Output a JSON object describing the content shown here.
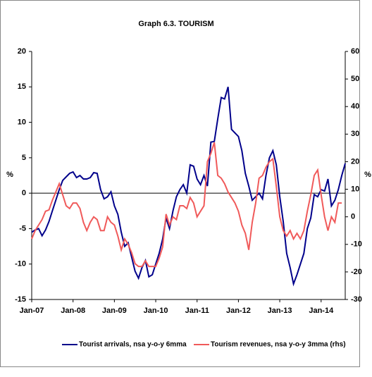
{
  "chart_data": {
    "type": "line",
    "title": "Graph 6.3. TOURISM",
    "ylabel": "%",
    "y2label": "%",
    "categories": [
      "Jan-07",
      null,
      null,
      null,
      null,
      null,
      null,
      null,
      null,
      null,
      null,
      null,
      "Jan-08",
      null,
      null,
      null,
      null,
      null,
      null,
      null,
      null,
      null,
      null,
      null,
      "Jan-09",
      null,
      null,
      null,
      null,
      null,
      null,
      null,
      null,
      null,
      null,
      null,
      "Jan-10",
      null,
      null,
      null,
      null,
      null,
      null,
      null,
      null,
      null,
      null,
      null,
      "Jan-11",
      null,
      null,
      null,
      null,
      null,
      null,
      null,
      null,
      null,
      null,
      null,
      "Jan-12",
      null,
      null,
      null,
      null,
      null,
      null,
      null,
      null,
      null,
      null,
      null,
      "Jan-13",
      null,
      null,
      null,
      null,
      null,
      null,
      null,
      null,
      null,
      null,
      null,
      "Jan-14",
      null,
      null,
      null,
      null,
      null,
      null,
      null
    ],
    "ylim": [
      -15,
      20
    ],
    "yticks": [
      -15,
      -10,
      -5,
      0,
      5,
      10,
      15,
      20
    ],
    "y2lim": [
      -30,
      60
    ],
    "y2ticks": [
      -30,
      -20,
      -10,
      0,
      10,
      20,
      30,
      40,
      50,
      60
    ],
    "series": [
      {
        "name": "Tourist arrivals, nsa y-o-y 6mma",
        "color": "#00008b",
        "values": [
          -5.5,
          -5.2,
          -5.0,
          -6.0,
          -5.2,
          -4.0,
          -2.5,
          -1.0,
          0.5,
          1.8,
          2.3,
          2.8,
          3.0,
          2.2,
          2.5,
          2.0,
          2.0,
          2.2,
          2.9,
          2.8,
          0.5,
          -0.8,
          -0.5,
          0.2,
          -1.8,
          -3.0,
          -5.5,
          -7.5,
          -7.0,
          -9.0,
          -11.0,
          -12.0,
          -10.5,
          -9.5,
          -11.8,
          -11.5,
          -10.0,
          -8.5,
          -6.5,
          -3.5,
          -5.0,
          -2.5,
          -0.5,
          0.5,
          1.2,
          0.0,
          4.0,
          3.8,
          2.0,
          1.2,
          2.5,
          1.0,
          7.2,
          7.3,
          10.5,
          13.5,
          13.3,
          15.0,
          9.0,
          8.5,
          8.0,
          6.0,
          2.8,
          1.0,
          -1.0,
          -0.5,
          0.0,
          -0.8,
          2.5,
          5.0,
          6.0,
          4.0,
          -0.5,
          -4.0,
          -8.5,
          -10.5,
          -12.8,
          -11.5,
          -10.0,
          -8.5,
          -5.0,
          -3.5,
          -0.2,
          -0.5,
          0.5,
          0.3,
          2.0,
          -1.8,
          -1.0,
          0.5,
          2.5,
          4.2
        ]
      },
      {
        "name": "Tourism revenues, nsa y-o-y 3mma (rhs)",
        "color": "#f05a5a",
        "axis": "y2",
        "values": [
          -8,
          -5,
          -3,
          -1,
          2,
          2.5,
          6,
          9,
          12,
          8,
          4,
          3,
          5,
          5,
          3,
          -2,
          -5,
          -2,
          0,
          -1,
          -5,
          -5,
          0,
          -2,
          -3,
          -7,
          -12,
          -8,
          -10,
          -13,
          -17,
          -18,
          -18,
          -16,
          -18,
          -18,
          -18,
          -15,
          -11,
          1,
          -3,
          0,
          -1,
          4,
          4,
          3,
          7,
          5,
          0,
          2,
          4,
          20,
          23,
          27,
          15,
          14,
          12,
          9,
          7,
          5,
          2,
          -3,
          -6,
          -12,
          -2,
          5,
          14,
          15,
          18,
          20,
          21,
          11,
          0,
          -5,
          -7,
          -5,
          -8,
          -6,
          -8,
          -5,
          2,
          8,
          15,
          17,
          8,
          0,
          -5,
          0,
          -2,
          5,
          5,
          null
        ]
      }
    ]
  }
}
